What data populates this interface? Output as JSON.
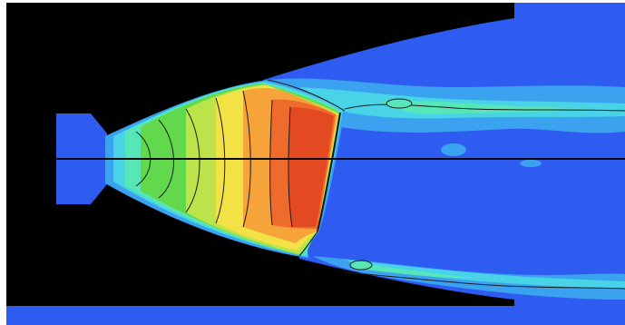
{
  "figure": {
    "colors": {
      "background_white": "#ffffff",
      "solid_black": "#000000",
      "ambient_blue": "#2e5cf0",
      "light_blue": "#3aa2ef",
      "cyan": "#48d3e6",
      "aqua_green": "#56e6b8",
      "green": "#62d94d",
      "yellow_green": "#bde34a",
      "yellow": "#f3e246",
      "orange": "#f6a33a",
      "dark_orange": "#ef6b2c",
      "red_orange": "#e44a22",
      "contour_line": "#1a1a1a"
    }
  }
}
